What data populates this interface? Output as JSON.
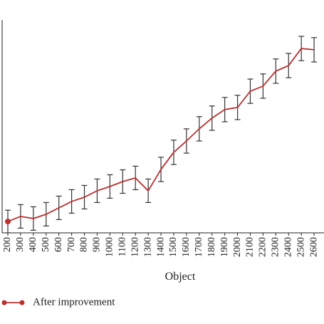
{
  "chart_data": {
    "type": "line",
    "x_label": "Object",
    "categories": [
      "200",
      "300",
      "400",
      "500",
      "600",
      "700",
      "800",
      "900",
      "1000",
      "1100",
      "1200",
      "1300",
      "1400",
      "1500",
      "1600",
      "1700",
      "1800",
      "1900",
      "2000",
      "2100",
      "2200",
      "2300",
      "2400",
      "2500",
      "2600"
    ],
    "series": [
      {
        "name": "After improvement",
        "color": "#b8312f",
        "values": [
          5.3,
          7.7,
          6.7,
          8.7,
          11.7,
          14.7,
          16.7,
          19.7,
          21.7,
          24,
          25.7,
          19.7,
          29.7,
          37.7,
          43,
          48.7,
          53.7,
          57.7,
          58.7,
          66.3,
          68.7,
          75.7,
          78.3,
          86.3,
          85.7
        ],
        "errors": [
          5.3,
          5.5,
          5.5,
          5.5,
          5.5,
          5.5,
          5.5,
          5.5,
          5.5,
          5.5,
          5.5,
          5.5,
          5.7,
          5.7,
          5.7,
          5.7,
          5.7,
          5.7,
          5.7,
          5.7,
          5.7,
          5.7,
          5.7,
          5.7,
          5.7
        ]
      }
    ],
    "ylim": [
      0,
      100
    ]
  }
}
